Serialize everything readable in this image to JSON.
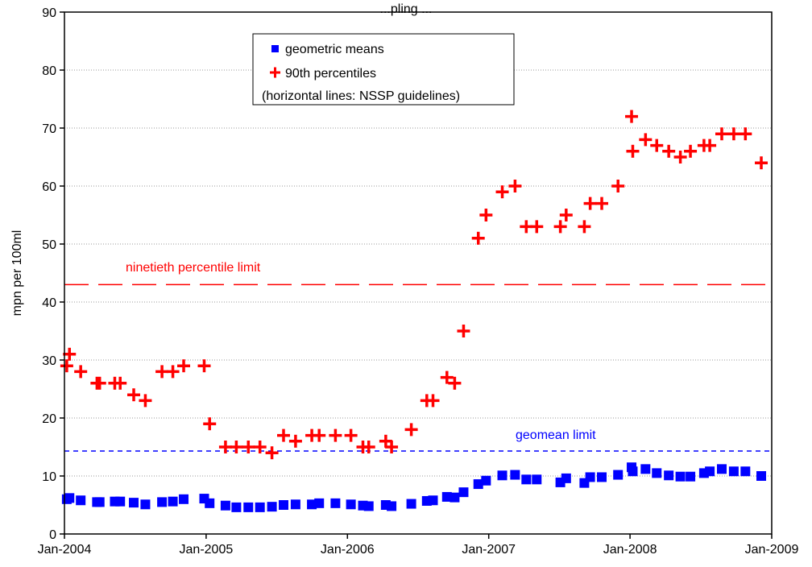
{
  "chart_data": {
    "type": "scatter",
    "title": "...pling ...",
    "xlabel": "",
    "ylabel": "mpn per 100ml",
    "x_tick_labels": [
      "Jan-2004",
      "Jan-2005",
      "Jan-2006",
      "Jan-2007",
      "Jan-2008",
      "Jan-2009"
    ],
    "x_ticks": [
      "2004-01-01",
      "2005-01-01",
      "2006-01-01",
      "2007-01-01",
      "2008-01-01",
      "2009-01-01"
    ],
    "xlim": [
      "2004-01-01",
      "2009-01-01"
    ],
    "y_tick_labels": [
      "0",
      "10",
      "20",
      "30",
      "40",
      "50",
      "60",
      "70",
      "80",
      "90"
    ],
    "ylim": [
      0,
      90
    ],
    "grid": "horizontal-dotted",
    "legend": {
      "placement": "top-center",
      "entries": [
        "geometric means",
        "90th percentiles",
        "(horizontal lines: NSSP guidelines)"
      ]
    },
    "series": [
      {
        "name": "geometric means",
        "marker": "square",
        "color": "#0000ff",
        "points": [
          {
            "x": "2004-01-07",
            "y": 6.0
          },
          {
            "x": "2004-01-14",
            "y": 6.2
          },
          {
            "x": "2004-02-12",
            "y": 5.8
          },
          {
            "x": "2004-03-25",
            "y": 5.5
          },
          {
            "x": "2004-04-01",
            "y": 5.5
          },
          {
            "x": "2004-05-10",
            "y": 5.6
          },
          {
            "x": "2004-05-24",
            "y": 5.6
          },
          {
            "x": "2004-06-28",
            "y": 5.4
          },
          {
            "x": "2004-07-28",
            "y": 5.1
          },
          {
            "x": "2004-09-09",
            "y": 5.5
          },
          {
            "x": "2004-10-07",
            "y": 5.6
          },
          {
            "x": "2004-11-04",
            "y": 6.0
          },
          {
            "x": "2004-12-27",
            "y": 6.1
          },
          {
            "x": "2005-01-10",
            "y": 5.3
          },
          {
            "x": "2005-02-20",
            "y": 4.9
          },
          {
            "x": "2005-03-20",
            "y": 4.6
          },
          {
            "x": "2005-04-20",
            "y": 4.6
          },
          {
            "x": "2005-05-20",
            "y": 4.6
          },
          {
            "x": "2005-06-20",
            "y": 4.7
          },
          {
            "x": "2005-07-20",
            "y": 5.0
          },
          {
            "x": "2005-08-20",
            "y": 5.1
          },
          {
            "x": "2005-10-01",
            "y": 5.1
          },
          {
            "x": "2005-10-20",
            "y": 5.3
          },
          {
            "x": "2005-12-01",
            "y": 5.3
          },
          {
            "x": "2006-01-10",
            "y": 5.1
          },
          {
            "x": "2006-02-10",
            "y": 4.9
          },
          {
            "x": "2006-02-25",
            "y": 4.8
          },
          {
            "x": "2006-04-10",
            "y": 5.0
          },
          {
            "x": "2006-04-25",
            "y": 4.8
          },
          {
            "x": "2006-06-15",
            "y": 5.2
          },
          {
            "x": "2006-07-25",
            "y": 5.7
          },
          {
            "x": "2006-08-10",
            "y": 5.8
          },
          {
            "x": "2006-09-15",
            "y": 6.4
          },
          {
            "x": "2006-10-05",
            "y": 6.3
          },
          {
            "x": "2006-10-28",
            "y": 7.2
          },
          {
            "x": "2006-12-05",
            "y": 8.6
          },
          {
            "x": "2006-12-25",
            "y": 9.2
          },
          {
            "x": "2007-02-05",
            "y": 10.1
          },
          {
            "x": "2007-03-10",
            "y": 10.2
          },
          {
            "x": "2007-04-08",
            "y": 9.4
          },
          {
            "x": "2007-05-05",
            "y": 9.4
          },
          {
            "x": "2007-07-05",
            "y": 8.9
          },
          {
            "x": "2007-07-20",
            "y": 9.6
          },
          {
            "x": "2007-09-05",
            "y": 8.8
          },
          {
            "x": "2007-09-20",
            "y": 9.8
          },
          {
            "x": "2007-10-20",
            "y": 9.8
          },
          {
            "x": "2007-12-01",
            "y": 10.2
          },
          {
            "x": "2008-01-05",
            "y": 11.5
          },
          {
            "x": "2008-01-08",
            "y": 10.8
          },
          {
            "x": "2008-02-10",
            "y": 11.2
          },
          {
            "x": "2008-03-10",
            "y": 10.5
          },
          {
            "x": "2008-04-10",
            "y": 10.1
          },
          {
            "x": "2008-05-10",
            "y": 9.9
          },
          {
            "x": "2008-06-05",
            "y": 9.9
          },
          {
            "x": "2008-07-10",
            "y": 10.5
          },
          {
            "x": "2008-07-25",
            "y": 10.8
          },
          {
            "x": "2008-08-25",
            "y": 11.2
          },
          {
            "x": "2008-09-25",
            "y": 10.8
          },
          {
            "x": "2008-10-25",
            "y": 10.8
          },
          {
            "x": "2008-12-05",
            "y": 10.0
          }
        ]
      },
      {
        "name": "90th percentiles",
        "marker": "plus",
        "color": "#ff0000",
        "points": [
          {
            "x": "2004-01-07",
            "y": 29
          },
          {
            "x": "2004-01-14",
            "y": 31
          },
          {
            "x": "2004-02-12",
            "y": 28
          },
          {
            "x": "2004-03-25",
            "y": 26
          },
          {
            "x": "2004-04-01",
            "y": 26
          },
          {
            "x": "2004-05-10",
            "y": 26
          },
          {
            "x": "2004-05-24",
            "y": 26
          },
          {
            "x": "2004-06-28",
            "y": 24
          },
          {
            "x": "2004-07-28",
            "y": 23
          },
          {
            "x": "2004-09-09",
            "y": 28
          },
          {
            "x": "2004-10-07",
            "y": 28
          },
          {
            "x": "2004-11-04",
            "y": 29
          },
          {
            "x": "2004-12-27",
            "y": 29
          },
          {
            "x": "2005-01-10",
            "y": 19
          },
          {
            "x": "2005-02-20",
            "y": 15
          },
          {
            "x": "2005-03-20",
            "y": 15
          },
          {
            "x": "2005-04-20",
            "y": 15
          },
          {
            "x": "2005-05-20",
            "y": 15
          },
          {
            "x": "2005-06-20",
            "y": 14
          },
          {
            "x": "2005-07-20",
            "y": 17
          },
          {
            "x": "2005-08-20",
            "y": 16
          },
          {
            "x": "2005-10-01",
            "y": 17
          },
          {
            "x": "2005-10-20",
            "y": 17
          },
          {
            "x": "2005-12-01",
            "y": 17
          },
          {
            "x": "2006-01-10",
            "y": 17
          },
          {
            "x": "2006-02-10",
            "y": 15
          },
          {
            "x": "2006-02-25",
            "y": 15
          },
          {
            "x": "2006-04-10",
            "y": 16
          },
          {
            "x": "2006-04-25",
            "y": 15
          },
          {
            "x": "2006-06-15",
            "y": 18
          },
          {
            "x": "2006-07-25",
            "y": 23
          },
          {
            "x": "2006-08-10",
            "y": 23
          },
          {
            "x": "2006-09-15",
            "y": 27
          },
          {
            "x": "2006-10-05",
            "y": 26
          },
          {
            "x": "2006-10-28",
            "y": 35
          },
          {
            "x": "2006-12-05",
            "y": 51
          },
          {
            "x": "2006-12-25",
            "y": 55
          },
          {
            "x": "2007-02-05",
            "y": 59
          },
          {
            "x": "2007-03-10",
            "y": 60
          },
          {
            "x": "2007-04-08",
            "y": 53
          },
          {
            "x": "2007-05-05",
            "y": 53
          },
          {
            "x": "2007-07-05",
            "y": 53
          },
          {
            "x": "2007-07-20",
            "y": 55
          },
          {
            "x": "2007-09-05",
            "y": 53
          },
          {
            "x": "2007-09-20",
            "y": 57
          },
          {
            "x": "2007-10-20",
            "y": 57
          },
          {
            "x": "2007-12-01",
            "y": 60
          },
          {
            "x": "2008-01-05",
            "y": 72
          },
          {
            "x": "2008-01-08",
            "y": 66
          },
          {
            "x": "2008-02-10",
            "y": 68
          },
          {
            "x": "2008-03-10",
            "y": 67
          },
          {
            "x": "2008-04-10",
            "y": 66
          },
          {
            "x": "2008-05-10",
            "y": 65
          },
          {
            "x": "2008-06-05",
            "y": 66
          },
          {
            "x": "2008-07-10",
            "y": 67
          },
          {
            "x": "2008-07-25",
            "y": 67
          },
          {
            "x": "2008-08-25",
            "y": 69
          },
          {
            "x": "2008-09-25",
            "y": 69
          },
          {
            "x": "2008-10-25",
            "y": 69
          },
          {
            "x": "2008-12-05",
            "y": 64
          }
        ]
      }
    ],
    "reference_lines": [
      {
        "label": "ninetieth percentile limit",
        "y": 43,
        "color": "#ff0000",
        "style": "long-dash"
      },
      {
        "label": "geomean limit",
        "y": 14.3,
        "color": "#0000ff",
        "style": "short-dash"
      }
    ]
  }
}
